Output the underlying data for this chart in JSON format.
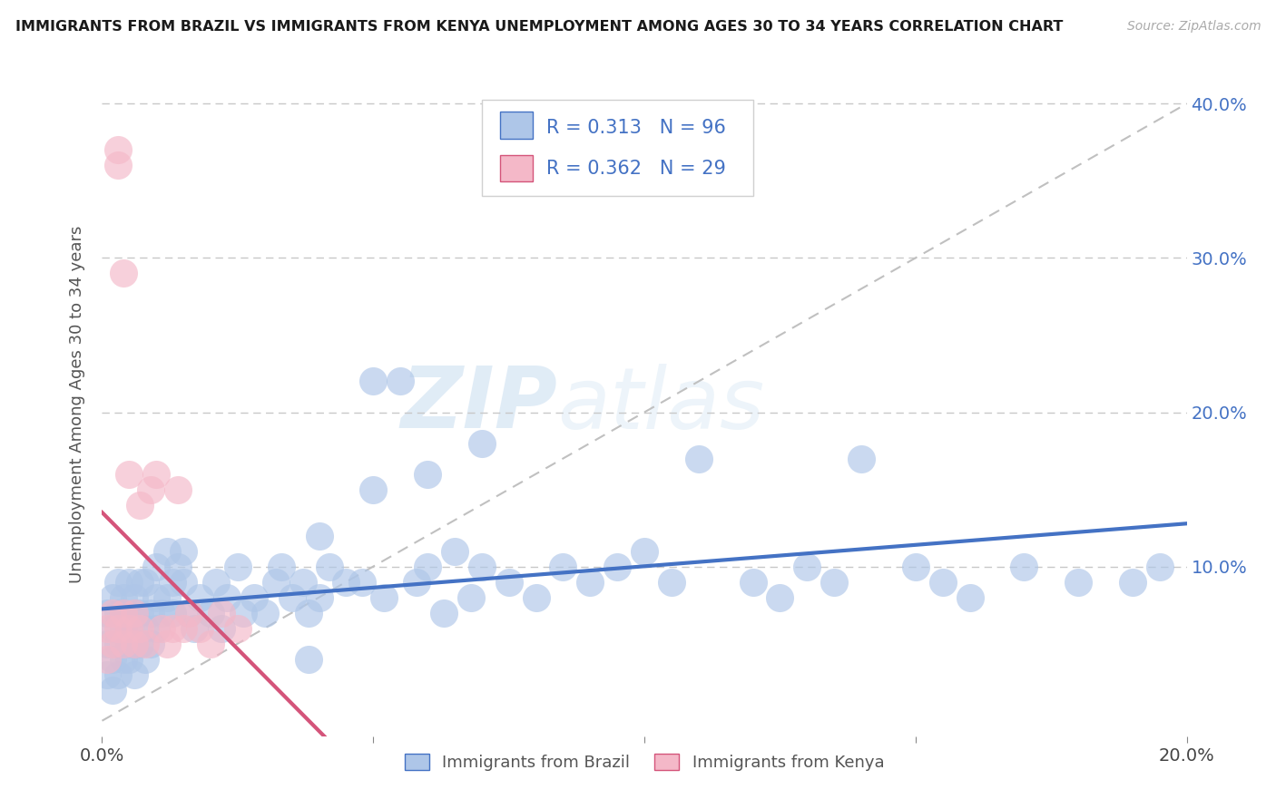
{
  "title": "IMMIGRANTS FROM BRAZIL VS IMMIGRANTS FROM KENYA UNEMPLOYMENT AMONG AGES 30 TO 34 YEARS CORRELATION CHART",
  "source": "Source: ZipAtlas.com",
  "ylabel": "Unemployment Among Ages 30 to 34 years",
  "legend_labels": [
    "Immigrants from Brazil",
    "Immigrants from Kenya"
  ],
  "brazil_R": 0.313,
  "brazil_N": 96,
  "kenya_R": 0.362,
  "kenya_N": 29,
  "xlim": [
    0.0,
    0.2
  ],
  "ylim": [
    -0.01,
    0.42
  ],
  "xticks": [
    0.0,
    0.05,
    0.1,
    0.15,
    0.2
  ],
  "xtick_labels": [
    "0.0%",
    "",
    "",
    "",
    "20.0%"
  ],
  "yticks": [
    0.0,
    0.1,
    0.2,
    0.3,
    0.4
  ],
  "ytick_labels_right": [
    "",
    "10.0%",
    "20.0%",
    "30.0%",
    "40.0%"
  ],
  "brazil_color": "#aec6e8",
  "brazil_line_color": "#4472c4",
  "kenya_color": "#f4b8c8",
  "kenya_line_color": "#d4547a",
  "watermark_text": "ZIPatlas",
  "background_color": "#ffffff",
  "brazil_x": [
    0.001,
    0.001,
    0.001,
    0.002,
    0.002,
    0.002,
    0.002,
    0.003,
    0.003,
    0.003,
    0.003,
    0.004,
    0.004,
    0.004,
    0.004,
    0.005,
    0.005,
    0.005,
    0.005,
    0.006,
    0.006,
    0.006,
    0.006,
    0.007,
    0.007,
    0.007,
    0.008,
    0.008,
    0.008,
    0.009,
    0.009,
    0.01,
    0.01,
    0.01,
    0.011,
    0.012,
    0.012,
    0.013,
    0.013,
    0.014,
    0.015,
    0.015,
    0.016,
    0.017,
    0.018,
    0.02,
    0.021,
    0.022,
    0.023,
    0.025,
    0.026,
    0.028,
    0.03,
    0.032,
    0.033,
    0.035,
    0.037,
    0.038,
    0.04,
    0.042,
    0.045,
    0.048,
    0.05,
    0.052,
    0.055,
    0.058,
    0.06,
    0.063,
    0.065,
    0.068,
    0.07,
    0.075,
    0.08,
    0.085,
    0.09,
    0.095,
    0.1,
    0.105,
    0.11,
    0.12,
    0.125,
    0.13,
    0.135,
    0.14,
    0.15,
    0.155,
    0.16,
    0.17,
    0.18,
    0.19,
    0.195,
    0.05,
    0.06,
    0.04,
    0.07,
    0.038
  ],
  "brazil_y": [
    0.03,
    0.05,
    0.07,
    0.04,
    0.06,
    0.02,
    0.08,
    0.05,
    0.07,
    0.03,
    0.09,
    0.06,
    0.04,
    0.08,
    0.07,
    0.05,
    0.09,
    0.06,
    0.04,
    0.07,
    0.05,
    0.08,
    0.03,
    0.07,
    0.05,
    0.09,
    0.06,
    0.09,
    0.04,
    0.07,
    0.05,
    0.08,
    0.06,
    0.1,
    0.07,
    0.08,
    0.11,
    0.09,
    0.07,
    0.1,
    0.09,
    0.11,
    0.07,
    0.06,
    0.08,
    0.07,
    0.09,
    0.06,
    0.08,
    0.1,
    0.07,
    0.08,
    0.07,
    0.09,
    0.1,
    0.08,
    0.09,
    0.07,
    0.08,
    0.1,
    0.09,
    0.09,
    0.22,
    0.08,
    0.22,
    0.09,
    0.1,
    0.07,
    0.11,
    0.08,
    0.1,
    0.09,
    0.08,
    0.1,
    0.09,
    0.1,
    0.11,
    0.09,
    0.17,
    0.09,
    0.08,
    0.1,
    0.09,
    0.17,
    0.1,
    0.09,
    0.08,
    0.1,
    0.09,
    0.09,
    0.1,
    0.15,
    0.16,
    0.12,
    0.18,
    0.04
  ],
  "kenya_x": [
    0.001,
    0.001,
    0.002,
    0.002,
    0.003,
    0.003,
    0.003,
    0.004,
    0.004,
    0.004,
    0.005,
    0.005,
    0.006,
    0.006,
    0.007,
    0.008,
    0.009,
    0.01,
    0.011,
    0.012,
    0.013,
    0.014,
    0.015,
    0.016,
    0.018,
    0.02,
    0.022,
    0.025,
    0.007
  ],
  "kenya_y": [
    0.06,
    0.04,
    0.05,
    0.07,
    0.06,
    0.36,
    0.37,
    0.05,
    0.29,
    0.07,
    0.06,
    0.16,
    0.05,
    0.07,
    0.06,
    0.05,
    0.15,
    0.16,
    0.06,
    0.05,
    0.06,
    0.15,
    0.06,
    0.07,
    0.06,
    0.05,
    0.07,
    0.06,
    0.14
  ]
}
